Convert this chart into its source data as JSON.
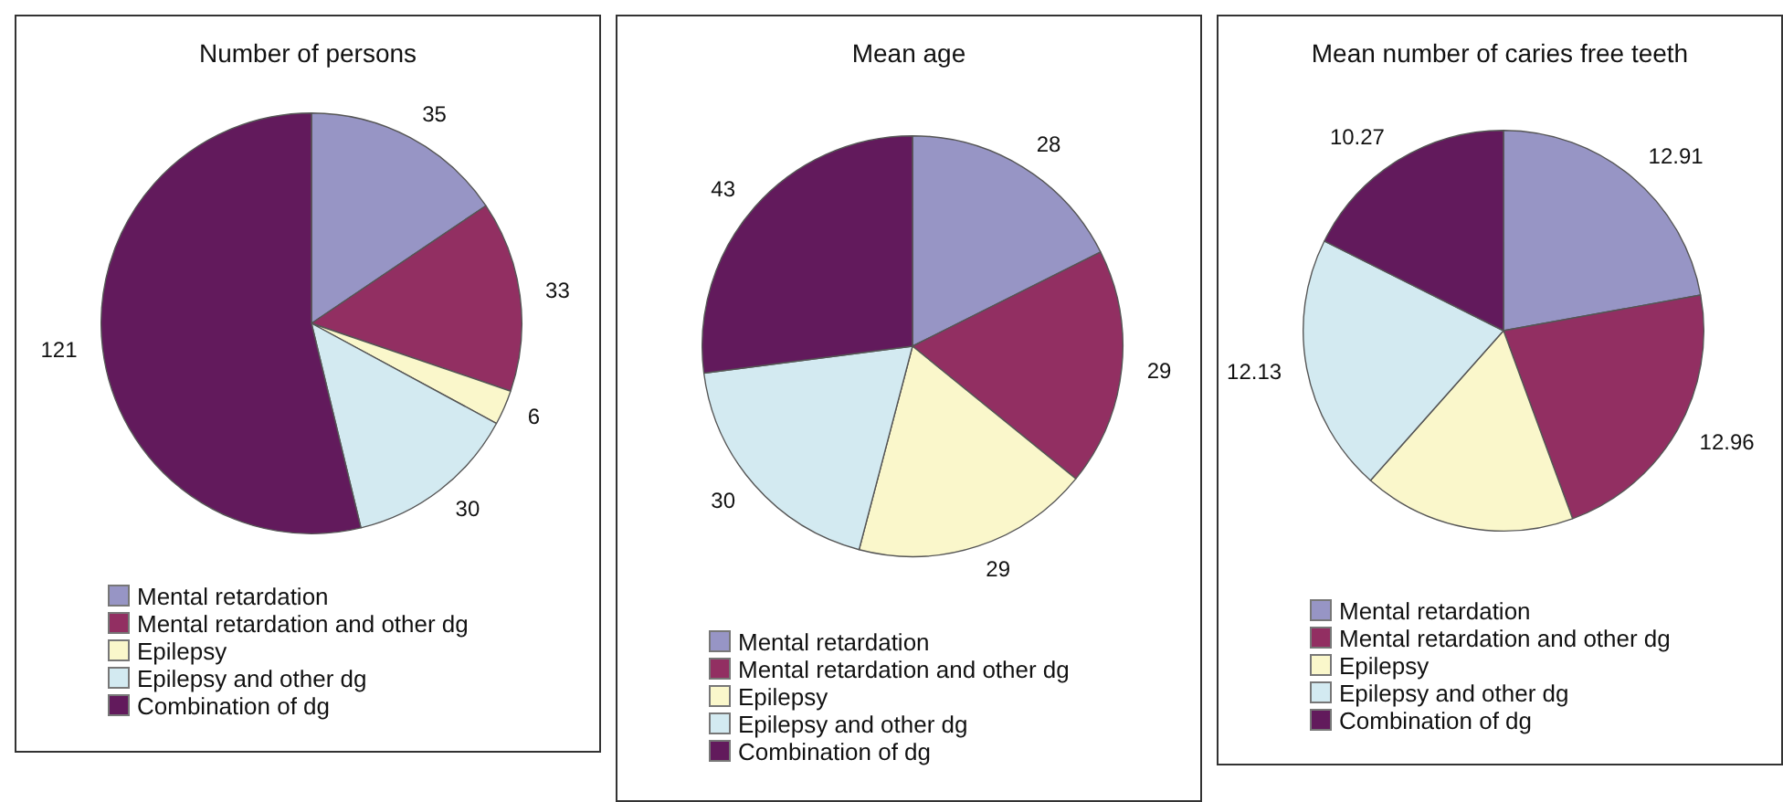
{
  "chart_data": [
    {
      "type": "pie",
      "title": "Number of persons",
      "categories": [
        "Mental retardation",
        "Mental retardation and other dg",
        "Epilepsy",
        "Epilepsy and other dg",
        "Combination of dg"
      ],
      "values": [
        35,
        33,
        6,
        30,
        121
      ],
      "colors": [
        "#9795c5",
        "#922f62",
        "#faf7cb",
        "#d3eaf1",
        "#621a5c"
      ],
      "data_labels": true,
      "legend": "bottom"
    },
    {
      "type": "pie",
      "title": "Mean age",
      "categories": [
        "Mental retardation",
        "Mental retardation and other dg",
        "Epilepsy",
        "Epilepsy and other dg",
        "Combination of dg"
      ],
      "values": [
        28,
        29,
        29,
        30,
        43
      ],
      "colors": [
        "#9795c5",
        "#922f62",
        "#faf7cb",
        "#d3eaf1",
        "#621a5c"
      ],
      "data_labels": true,
      "legend": "bottom"
    },
    {
      "type": "pie",
      "title": "Mean number of caries free teeth",
      "categories": [
        "Mental retardation",
        "Mental retardation and other dg",
        "Epilepsy",
        "Epilepsy and other dg",
        "Combination of dg"
      ],
      "values": [
        12.91,
        12.96,
        10.0,
        12.13,
        10.27
      ],
      "value_labels": [
        "12.91",
        "12.96",
        null,
        "12.13",
        "10.27"
      ],
      "colors": [
        "#9795c5",
        "#922f62",
        "#faf7cb",
        "#d3eaf1",
        "#621a5c"
      ],
      "legend": "bottom"
    }
  ]
}
